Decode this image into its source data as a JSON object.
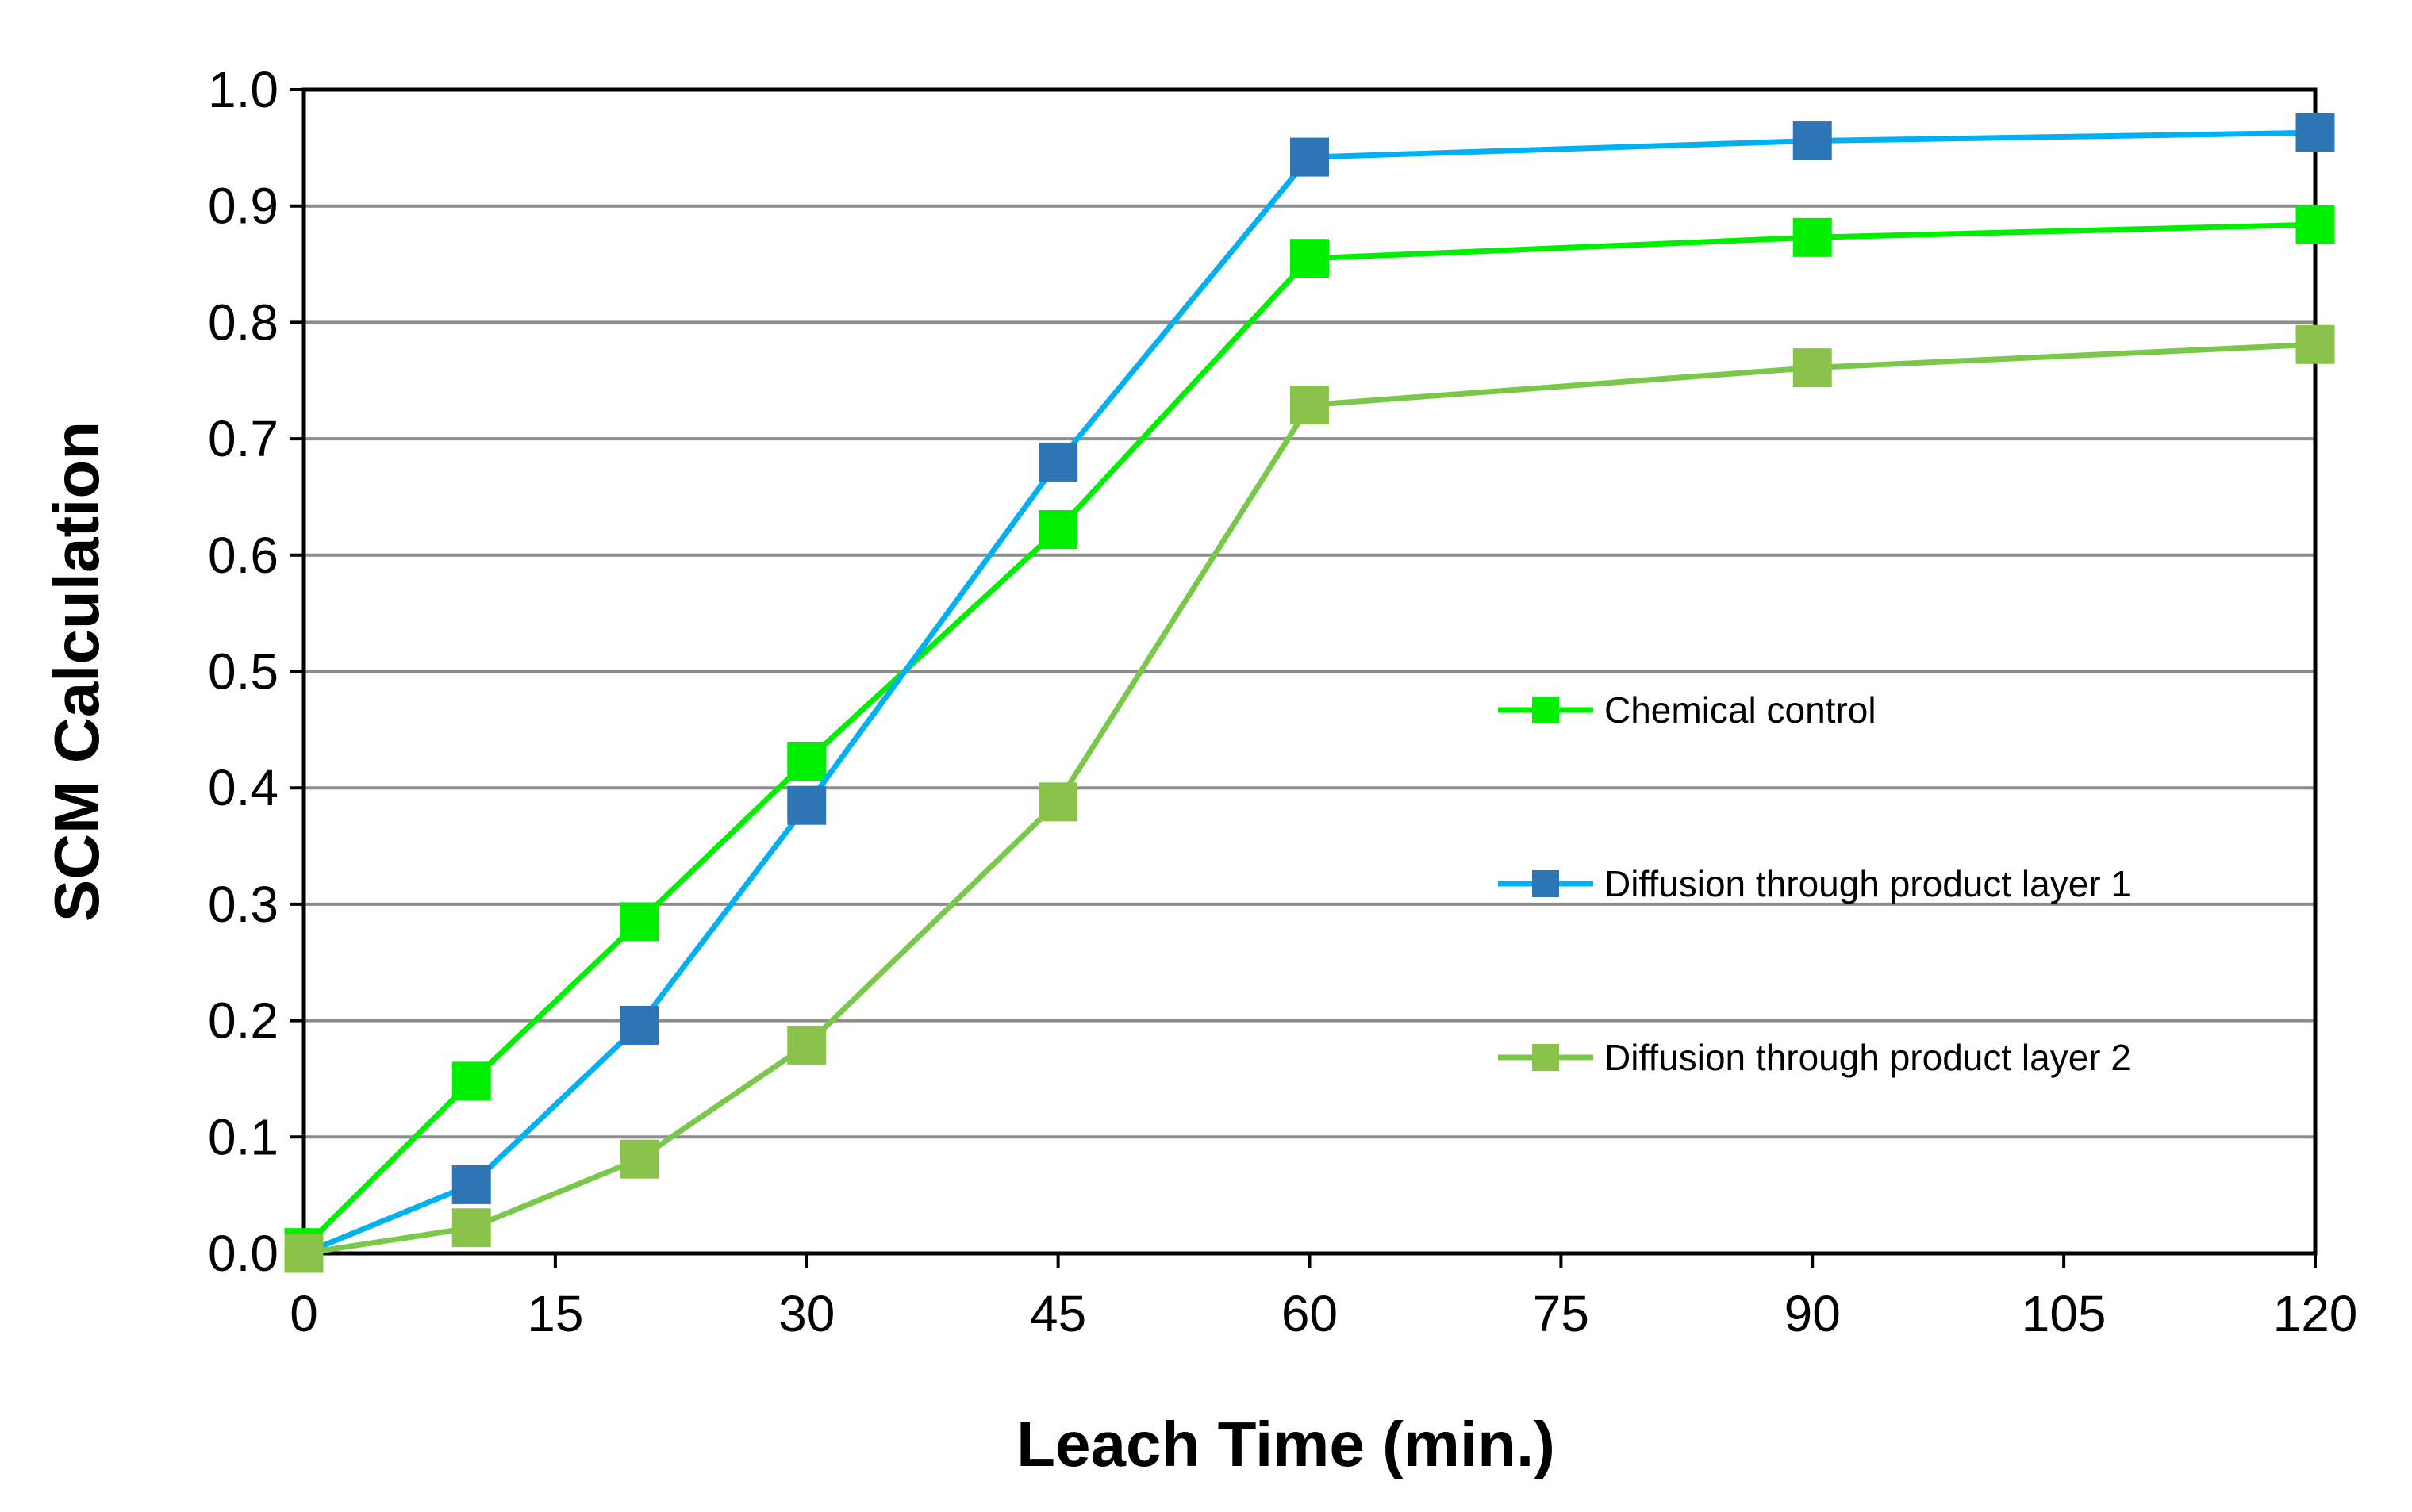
{
  "chart_data": {
    "type": "line",
    "title": "",
    "xlabel": "Leach Time (min.)",
    "ylabel": "SCM Calculation",
    "xlim": [
      0,
      120
    ],
    "ylim": [
      0,
      1.0
    ],
    "x_ticks": [
      0,
      15,
      30,
      45,
      60,
      75,
      90,
      105,
      120
    ],
    "y_ticks": [
      0.0,
      0.1,
      0.2,
      0.3,
      0.4,
      0.5,
      0.6,
      0.7,
      0.8,
      0.9,
      1.0
    ],
    "x_tick_labels": [
      "0",
      "15",
      "30",
      "45",
      "60",
      "75",
      "90",
      "105",
      "120"
    ],
    "y_tick_labels": [
      "0.0",
      "0.1",
      "0.2",
      "0.3",
      "0.4",
      "0.5",
      "0.6",
      "0.7",
      "0.8",
      "0.9",
      "1.0"
    ],
    "grid": "horizontal",
    "legend_position": "center-right",
    "x": [
      0,
      10,
      20,
      30,
      45,
      60,
      90,
      120
    ],
    "series": [
      {
        "name": "Chemical control",
        "line_color": "#00ee00",
        "marker_color": "#00ee00",
        "values": [
          0.005,
          0.148,
          0.285,
          0.423,
          0.622,
          0.855,
          0.873,
          0.884
        ]
      },
      {
        "name": "Diffusion through product layer 1",
        "line_color": "#00b0f0",
        "marker_color": "#2e75b6",
        "values": [
          0.0,
          0.059,
          0.196,
          0.385,
          0.68,
          0.942,
          0.956,
          0.963
        ]
      },
      {
        "name": "Diffusion through product layer 2",
        "line_color": "#79c84a",
        "marker_color": "#8bc34a",
        "values": [
          0.0,
          0.022,
          0.081,
          0.179,
          0.388,
          0.729,
          0.761,
          0.781
        ]
      }
    ]
  }
}
